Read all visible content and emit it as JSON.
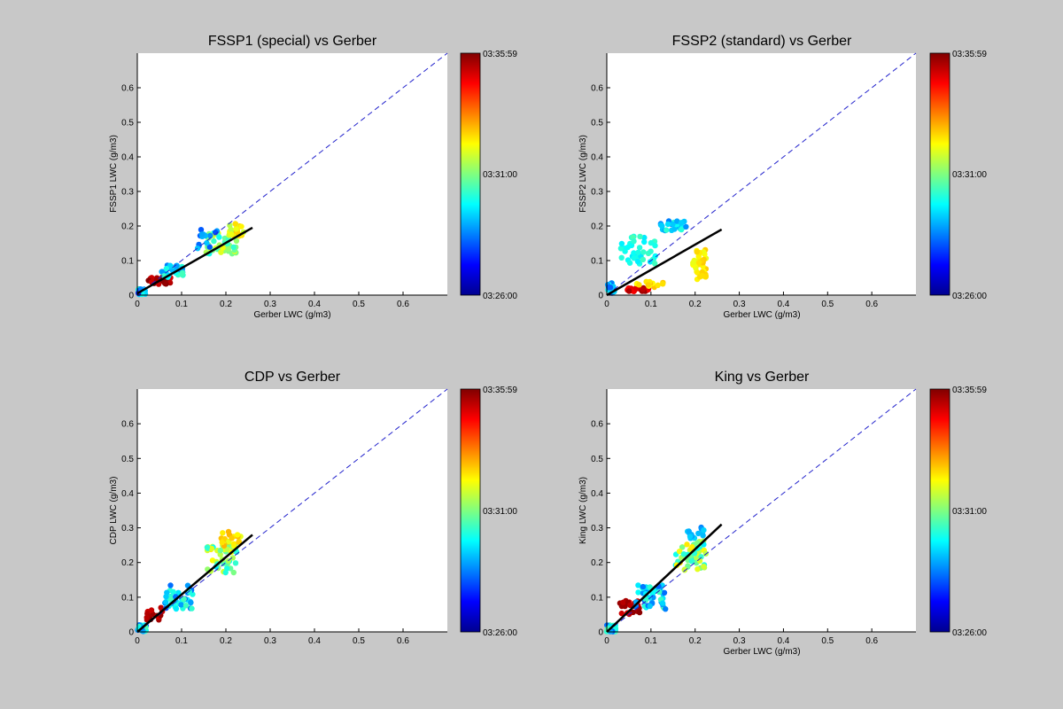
{
  "colors": {
    "background": "#c8c8c8",
    "axes_bg": "#ffffff",
    "identity_line": "#2222cc",
    "fit_line": "#000000"
  },
  "colorbar": {
    "colormap": "jet",
    "top_label": "03:35:59",
    "mid_label": "03:31:00",
    "bottom_label": "03:26:00"
  },
  "chart_data": [
    {
      "type": "scatter",
      "title": "FSSP1 (special) vs Gerber",
      "xlabel": "Gerber LWC (g/m3)",
      "ylabel": "FSSP1 LWC (g/m3)",
      "xlim": [
        0,
        0.7
      ],
      "ylim": [
        0,
        0.7
      ],
      "x_ticks": [
        "0",
        "0.1",
        "0.2",
        "0.3",
        "0.4",
        "0.5",
        "0.6"
      ],
      "y_ticks": [
        "0",
        "0.1",
        "0.2",
        "0.3",
        "0.4",
        "0.5",
        "0.6"
      ],
      "identity_line": true,
      "fit": [
        [
          0,
          0.005
        ],
        [
          0.26,
          0.195
        ]
      ],
      "clusters": [
        {
          "cx": 0.01,
          "cy": 0.01,
          "sx": 0.008,
          "sy": 0.008,
          "n": 35,
          "c0": 0.15,
          "c1": 0.45
        },
        {
          "cx": 0.05,
          "cy": 0.04,
          "sx": 0.025,
          "sy": 0.012,
          "n": 25,
          "c0": 0.92,
          "c1": 1.0
        },
        {
          "cx": 0.08,
          "cy": 0.07,
          "sx": 0.025,
          "sy": 0.018,
          "n": 30,
          "c0": 0.25,
          "c1": 0.45
        },
        {
          "cx": 0.19,
          "cy": 0.15,
          "sx": 0.035,
          "sy": 0.03,
          "n": 45,
          "c0": 0.38,
          "c1": 0.62
        },
        {
          "cx": 0.22,
          "cy": 0.19,
          "sx": 0.02,
          "sy": 0.02,
          "n": 20,
          "c0": 0.55,
          "c1": 0.68
        },
        {
          "cx": 0.16,
          "cy": 0.16,
          "sx": 0.03,
          "sy": 0.03,
          "n": 14,
          "c0": 0.2,
          "c1": 0.32
        }
      ]
    },
    {
      "type": "scatter",
      "title": "FSSP2 (standard) vs Gerber",
      "xlabel": "Gerber LWC (g/m3)",
      "ylabel": "FSSP2 LWC (g/m3)",
      "xlim": [
        0,
        0.7
      ],
      "ylim": [
        0,
        0.7
      ],
      "x_ticks": [
        "0",
        "0.1",
        "0.2",
        "0.3",
        "0.4",
        "0.5",
        "0.6"
      ],
      "y_ticks": [
        "0",
        "0.1",
        "0.2",
        "0.3",
        "0.4",
        "0.5",
        "0.6"
      ],
      "identity_line": true,
      "fit": [
        [
          0,
          0.0
        ],
        [
          0.26,
          0.19
        ]
      ],
      "clusters": [
        {
          "cx": 0.01,
          "cy": 0.02,
          "sx": 0.008,
          "sy": 0.015,
          "n": 30,
          "c0": 0.2,
          "c1": 0.4
        },
        {
          "cx": 0.07,
          "cy": 0.13,
          "sx": 0.04,
          "sy": 0.04,
          "n": 45,
          "c0": 0.35,
          "c1": 0.45
        },
        {
          "cx": 0.15,
          "cy": 0.2,
          "sx": 0.03,
          "sy": 0.015,
          "n": 30,
          "c0": 0.22,
          "c1": 0.42
        },
        {
          "cx": 0.21,
          "cy": 0.09,
          "sx": 0.015,
          "sy": 0.045,
          "n": 40,
          "c0": 0.6,
          "c1": 0.68
        },
        {
          "cx": 0.07,
          "cy": 0.015,
          "sx": 0.025,
          "sy": 0.006,
          "n": 25,
          "c0": 0.85,
          "c1": 0.98
        },
        {
          "cx": 0.1,
          "cy": 0.03,
          "sx": 0.04,
          "sy": 0.01,
          "n": 12,
          "c0": 0.62,
          "c1": 0.7
        }
      ]
    },
    {
      "type": "scatter",
      "title": "CDP vs Gerber",
      "xlabel": "",
      "ylabel": "CDP LWC (g/m3)",
      "xlim": [
        0,
        0.7
      ],
      "ylim": [
        0,
        0.7
      ],
      "x_ticks": [
        "0",
        "0.1",
        "0.2",
        "0.3",
        "0.4",
        "0.5",
        "0.6"
      ],
      "y_ticks": [
        "0",
        "0.1",
        "0.2",
        "0.3",
        "0.4",
        "0.5",
        "0.6"
      ],
      "identity_line": true,
      "fit": [
        [
          0,
          0.0
        ],
        [
          0.26,
          0.28
        ]
      ],
      "clusters": [
        {
          "cx": 0.01,
          "cy": 0.01,
          "sx": 0.01,
          "sy": 0.01,
          "n": 40,
          "c0": 0.2,
          "c1": 0.45
        },
        {
          "cx": 0.04,
          "cy": 0.05,
          "sx": 0.02,
          "sy": 0.02,
          "n": 15,
          "c0": 0.92,
          "c1": 1.0
        },
        {
          "cx": 0.09,
          "cy": 0.1,
          "sx": 0.035,
          "sy": 0.035,
          "n": 40,
          "c0": 0.22,
          "c1": 0.45
        },
        {
          "cx": 0.19,
          "cy": 0.21,
          "sx": 0.035,
          "sy": 0.04,
          "n": 50,
          "c0": 0.35,
          "c1": 0.65
        },
        {
          "cx": 0.21,
          "cy": 0.27,
          "sx": 0.025,
          "sy": 0.025,
          "n": 20,
          "c0": 0.6,
          "c1": 0.72
        }
      ]
    },
    {
      "type": "scatter",
      "title": "King vs Gerber",
      "xlabel": "Gerber LWC (g/m3)",
      "ylabel": "King LWC (g/m3)",
      "xlim": [
        0,
        0.7
      ],
      "ylim": [
        0,
        0.7
      ],
      "x_ticks": [
        "0",
        "0.1",
        "0.2",
        "0.3",
        "0.4",
        "0.5",
        "0.6"
      ],
      "y_ticks": [
        "0",
        "0.1",
        "0.2",
        "0.3",
        "0.4",
        "0.5",
        "0.6"
      ],
      "identity_line": true,
      "fit": [
        [
          0,
          0.0
        ],
        [
          0.26,
          0.31
        ]
      ],
      "clusters": [
        {
          "cx": 0.01,
          "cy": 0.01,
          "sx": 0.01,
          "sy": 0.01,
          "n": 40,
          "c0": 0.2,
          "c1": 0.45
        },
        {
          "cx": 0.05,
          "cy": 0.07,
          "sx": 0.025,
          "sy": 0.02,
          "n": 25,
          "c0": 0.9,
          "c1": 1.0
        },
        {
          "cx": 0.1,
          "cy": 0.1,
          "sx": 0.035,
          "sy": 0.035,
          "n": 45,
          "c0": 0.22,
          "c1": 0.45
        },
        {
          "cx": 0.19,
          "cy": 0.22,
          "sx": 0.035,
          "sy": 0.045,
          "n": 50,
          "c0": 0.35,
          "c1": 0.65
        },
        {
          "cx": 0.2,
          "cy": 0.29,
          "sx": 0.02,
          "sy": 0.02,
          "n": 14,
          "c0": 0.25,
          "c1": 0.35
        }
      ]
    }
  ]
}
